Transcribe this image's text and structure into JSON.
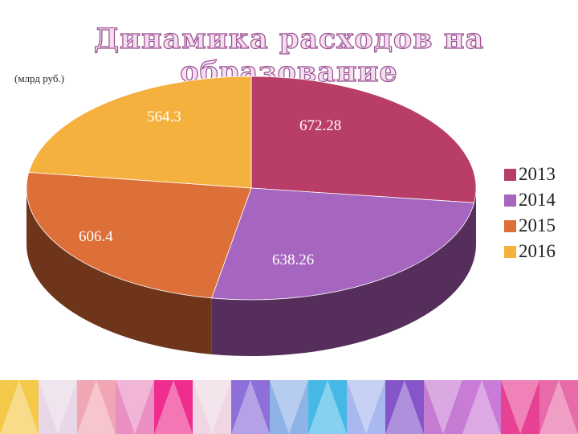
{
  "title": "Динамика расходов на образование",
  "unit_note": "(млрд руб.)",
  "chart_data": {
    "type": "pie",
    "style": "3d",
    "categories": [
      "2013",
      "2014",
      "2015",
      "2016"
    ],
    "values": [
      672.28,
      638.26,
      606.4,
      564.3
    ],
    "value_labels": [
      "672.28",
      "638.26",
      "606.4",
      "564.3"
    ],
    "colors": [
      "#b83d67",
      "#a666c0",
      "#dd6f39",
      "#f5b13e"
    ],
    "side_colors": [
      "#532f59",
      "#552e5c",
      "#6e351a",
      "#6e351a"
    ],
    "legend_position": "right",
    "start_angle_deg": 90,
    "direction": "clockwise"
  },
  "decor": {
    "band_colors": [
      "#f4c94a",
      "#e9d6e6",
      "#f1a7b3",
      "#ea8fc2",
      "#ee2d8e",
      "#efd6e2",
      "#8d6fd9",
      "#8fb3e6",
      "#45b8e6",
      "#a9b8ee",
      "#8555c9",
      "#c67bd3",
      "#c97bd7",
      "#e74193",
      "#e96aa8"
    ]
  }
}
